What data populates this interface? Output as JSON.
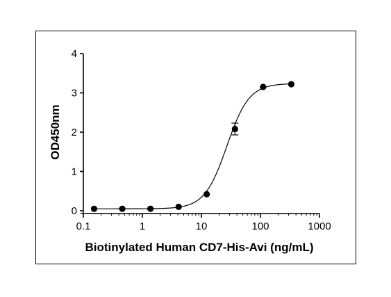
{
  "chart_data": {
    "type": "scatter",
    "title": "",
    "xlabel": "Biotinylated Human CD7-His-Avi (ng/mL)",
    "ylabel": "OD450nm",
    "x_scale": "log",
    "xlim": [
      0.1,
      1000
    ],
    "ylim": [
      0,
      4
    ],
    "x_ticks": [
      0.1,
      1,
      10,
      100,
      1000
    ],
    "x_tick_labels": [
      "0.1",
      "1",
      "10",
      "100",
      "1000"
    ],
    "y_ticks": [
      0,
      1,
      2,
      3,
      4
    ],
    "y_tick_labels": [
      "0",
      "1",
      "2",
      "3",
      "4"
    ],
    "grid": false,
    "legend": false,
    "points": [
      {
        "x": 0.152,
        "y": 0.05
      },
      {
        "x": 0.457,
        "y": 0.05
      },
      {
        "x": 1.37,
        "y": 0.05
      },
      {
        "x": 4.12,
        "y": 0.1
      },
      {
        "x": 12.3,
        "y": 0.42
      },
      {
        "x": 37.0,
        "y": 2.08,
        "err": 0.15
      },
      {
        "x": 111,
        "y": 3.15
      },
      {
        "x": 333,
        "y": 3.22
      }
    ],
    "fit_curve": {
      "model": "4PL",
      "bottom": 0.05,
      "top": 3.24,
      "ec50": 27,
      "hill": 2.3
    },
    "colors": {
      "marker": "#000000",
      "line": "#000000"
    }
  }
}
